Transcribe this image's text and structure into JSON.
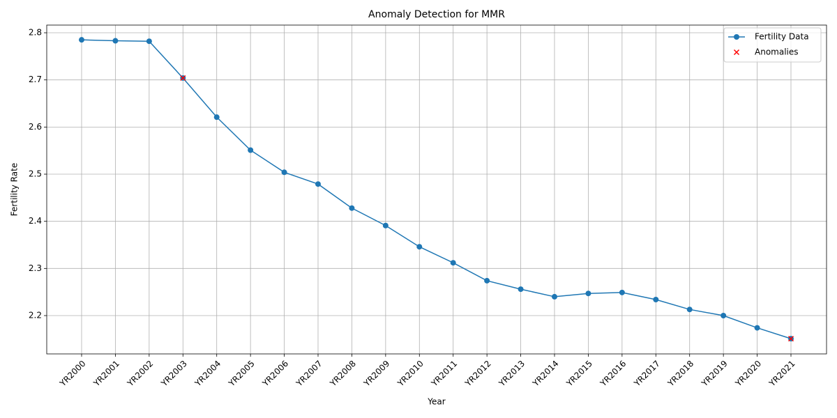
{
  "chart_data": {
    "type": "line",
    "title": "Anomaly Detection for MMR",
    "xlabel": "Year",
    "ylabel": "Fertility Rate",
    "categories": [
      "YR2000",
      "YR2001",
      "YR2002",
      "YR2003",
      "YR2004",
      "YR2005",
      "YR2006",
      "YR2007",
      "YR2008",
      "YR2009",
      "YR2010",
      "YR2011",
      "YR2012",
      "YR2013",
      "YR2014",
      "YR2015",
      "YR2016",
      "YR2017",
      "YR2018",
      "YR2019",
      "YR2020",
      "YR2021"
    ],
    "series": [
      {
        "name": "Fertility Data",
        "color": "#1f77b4",
        "marker": "o",
        "values": [
          2.785,
          2.783,
          2.782,
          2.704,
          2.621,
          2.551,
          2.504,
          2.479,
          2.428,
          2.391,
          2.346,
          2.312,
          2.274,
          2.256,
          2.24,
          2.247,
          2.249,
          2.234,
          2.213,
          2.2,
          2.174,
          2.151
        ]
      },
      {
        "name": "Anomalies",
        "color": "#ff0000",
        "marker": "x",
        "values": [
          null,
          null,
          null,
          2.704,
          null,
          null,
          null,
          null,
          null,
          null,
          null,
          null,
          null,
          null,
          null,
          null,
          null,
          null,
          null,
          null,
          null,
          2.151
        ]
      }
    ],
    "ylim": [
      2.1187,
      2.8163
    ],
    "yticks": [
      {
        "value": 2.2,
        "label": "2.2"
      },
      2.3,
      2.4,
      2.5,
      2.6,
      2.7,
      {
        "value": 2.8,
        "label": "2.8"
      }
    ],
    "grid": true,
    "legend": "upper right"
  }
}
